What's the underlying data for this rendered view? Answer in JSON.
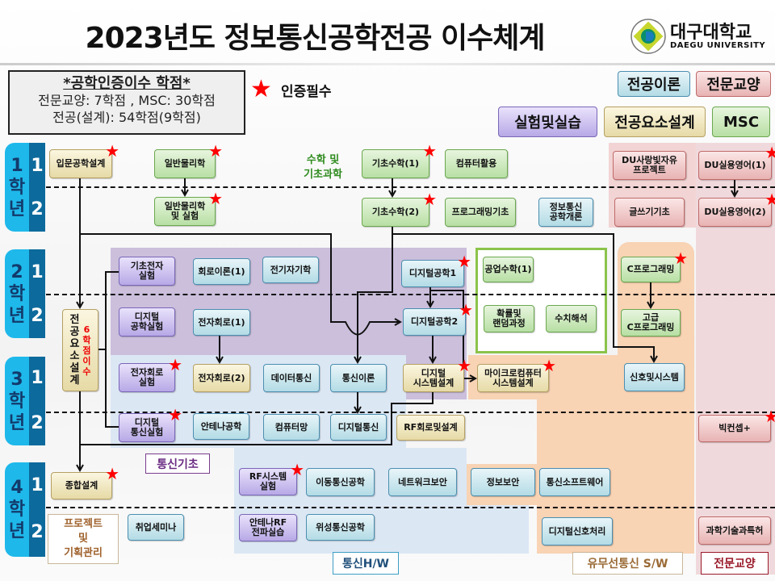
{
  "title": "2023년도 정보통신공학전공 이수체계",
  "logo": {
    "name_ko": "대구대학교",
    "name_en": "DAEGU UNIVERSITY"
  },
  "credits_info": {
    "heading": "*공학인증이수 학점*",
    "line1": "전문교양: 7학점 , MSC: 30학점",
    "line2": "전공(설계): 54학점(9학점)"
  },
  "required_legend": "인증필수",
  "legend": [
    {
      "label": "전공이론",
      "category": "theory"
    },
    {
      "label": "전문교양",
      "category": "liberal"
    },
    {
      "label": "실험및실습",
      "category": "lab"
    },
    {
      "label": "전공요소설계",
      "category": "design"
    },
    {
      "label": "MSC",
      "category": "msc"
    }
  ],
  "years": [
    {
      "year": "1",
      "suffix": [
        "학",
        "년"
      ],
      "semesters": [
        "1",
        "2"
      ]
    },
    {
      "year": "2",
      "suffix": [
        "학",
        "년"
      ],
      "semesters": [
        "1",
        "2"
      ]
    },
    {
      "year": "3",
      "suffix": [
        "학",
        "년"
      ],
      "semesters": [
        "1",
        "2"
      ]
    },
    {
      "year": "4",
      "suffix": [
        "학",
        "년"
      ],
      "semesters": [
        "1",
        "2"
      ]
    }
  ],
  "group_labels": {
    "math_science": "수학 및\n기초과학",
    "comm_basics": "통신기초",
    "project_mgmt": "프로젝트\n및\n기획관리",
    "comm_hw": "통신H/W",
    "comm_sw": "유무선통신 S/W",
    "liberal": "전문교양"
  },
  "design_elective": {
    "label": "전\n공\n요\n소\n설\n계",
    "note": "6\n학\n점\n이\n수"
  },
  "colors": {
    "design": "#e6daa6",
    "msc": "#b8dfa4",
    "theory": "#b3dbe5",
    "lab": "#b7a8e6",
    "liberal": "#e8b3b3",
    "required_star": "#ff0000",
    "year_tab": "#1fb8ea",
    "semester_tab": "#0d6a9c"
  },
  "courses": [
    {
      "id": "c01",
      "label": "입문공학설계",
      "category": "design",
      "required": true
    },
    {
      "id": "c02",
      "label": "일반물리학",
      "category": "msc",
      "required": true
    },
    {
      "id": "c03",
      "label": "기초수학(1)",
      "category": "msc",
      "required": true
    },
    {
      "id": "c04",
      "label": "컴퓨터활용",
      "category": "msc",
      "required": false
    },
    {
      "id": "c05",
      "label": "DU사랑빛자유\n프로젝트",
      "category": "liberal",
      "required": false
    },
    {
      "id": "c06",
      "label": "DU실용영어(1)",
      "category": "liberal",
      "required": true
    },
    {
      "id": "c07",
      "label": "일반물리학\n및 실험",
      "category": "msc",
      "required": true
    },
    {
      "id": "c08",
      "label": "기초수학(2)",
      "category": "msc",
      "required": true
    },
    {
      "id": "c09",
      "label": "프로그래밍기초",
      "category": "msc",
      "required": false
    },
    {
      "id": "c10",
      "label": "정보통신\n공학개론",
      "category": "theory",
      "required": false
    },
    {
      "id": "c11",
      "label": "글쓰기기초",
      "category": "liberal",
      "required": false
    },
    {
      "id": "c12",
      "label": "DU실용영어(2)",
      "category": "liberal",
      "required": true
    },
    {
      "id": "c13",
      "label": "기초전자\n실험",
      "category": "lab",
      "required": false
    },
    {
      "id": "c14",
      "label": "회로이론(1)",
      "category": "theory",
      "required": false
    },
    {
      "id": "c15",
      "label": "전기자기학",
      "category": "theory",
      "required": false
    },
    {
      "id": "c16",
      "label": "디지털공학1",
      "category": "theory",
      "required": true
    },
    {
      "id": "c17",
      "label": "공업수학(1)",
      "category": "msc",
      "required": false
    },
    {
      "id": "c18",
      "label": "C프로그래밍",
      "category": "msc",
      "required": true
    },
    {
      "id": "c19",
      "label": "디지털\n공학실험",
      "category": "lab",
      "required": false
    },
    {
      "id": "c20",
      "label": "전자회로(1)",
      "category": "theory",
      "required": false
    },
    {
      "id": "c21",
      "label": "디지털공학2",
      "category": "theory",
      "required": true
    },
    {
      "id": "c22",
      "label": "확률및\n랜덤과정",
      "category": "msc",
      "required": false
    },
    {
      "id": "c23",
      "label": "수치해석",
      "category": "msc",
      "required": false
    },
    {
      "id": "c24",
      "label": "고급\nC프로그래밍",
      "category": "msc",
      "required": false
    },
    {
      "id": "c25",
      "label": "전자회로\n실험",
      "category": "lab",
      "required": true
    },
    {
      "id": "c26",
      "label": "전자회로(2)",
      "category": "design",
      "required": false
    },
    {
      "id": "c27",
      "label": "데이터통신",
      "category": "theory",
      "required": false
    },
    {
      "id": "c28",
      "label": "통신이론",
      "category": "theory",
      "required": false
    },
    {
      "id": "c29",
      "label": "디지털\n시스템설계",
      "category": "design",
      "required": true
    },
    {
      "id": "c30",
      "label": "마이크로컴퓨터\n시스템설계",
      "category": "design",
      "required": true
    },
    {
      "id": "c31",
      "label": "신호및시스템",
      "category": "theory",
      "required": false
    },
    {
      "id": "c32",
      "label": "디지털\n통신실험",
      "category": "lab",
      "required": true
    },
    {
      "id": "c33",
      "label": "안테나공학",
      "category": "theory",
      "required": false
    },
    {
      "id": "c34",
      "label": "컴퓨터망",
      "category": "theory",
      "required": false
    },
    {
      "id": "c35",
      "label": "디지털통신",
      "category": "theory",
      "required": false
    },
    {
      "id": "c36",
      "label": "RF회로및설계",
      "category": "design",
      "required": false
    },
    {
      "id": "c37",
      "label": "빅컨셉+",
      "category": "liberal",
      "required": true
    },
    {
      "id": "c38",
      "label": "종합설계",
      "category": "design",
      "required": true
    },
    {
      "id": "c39",
      "label": "RF시스템\n실험",
      "category": "lab",
      "required": true
    },
    {
      "id": "c40",
      "label": "이동통신공학",
      "category": "theory",
      "required": false
    },
    {
      "id": "c41",
      "label": "네트워크보안",
      "category": "theory",
      "required": false
    },
    {
      "id": "c42",
      "label": "정보보안",
      "category": "theory",
      "required": false
    },
    {
      "id": "c43",
      "label": "통신소프트웨어",
      "category": "theory",
      "required": false
    },
    {
      "id": "c44",
      "label": "취업세미나",
      "category": "theory",
      "required": false
    },
    {
      "id": "c45",
      "label": "안테나RF\n전파실습",
      "category": "lab",
      "required": false
    },
    {
      "id": "c46",
      "label": "위성통신공학",
      "category": "theory",
      "required": false
    },
    {
      "id": "c47",
      "label": "디지털신호처리",
      "category": "theory",
      "required": false
    },
    {
      "id": "c48",
      "label": "과학기술과특허",
      "category": "liberal",
      "required": false
    }
  ]
}
